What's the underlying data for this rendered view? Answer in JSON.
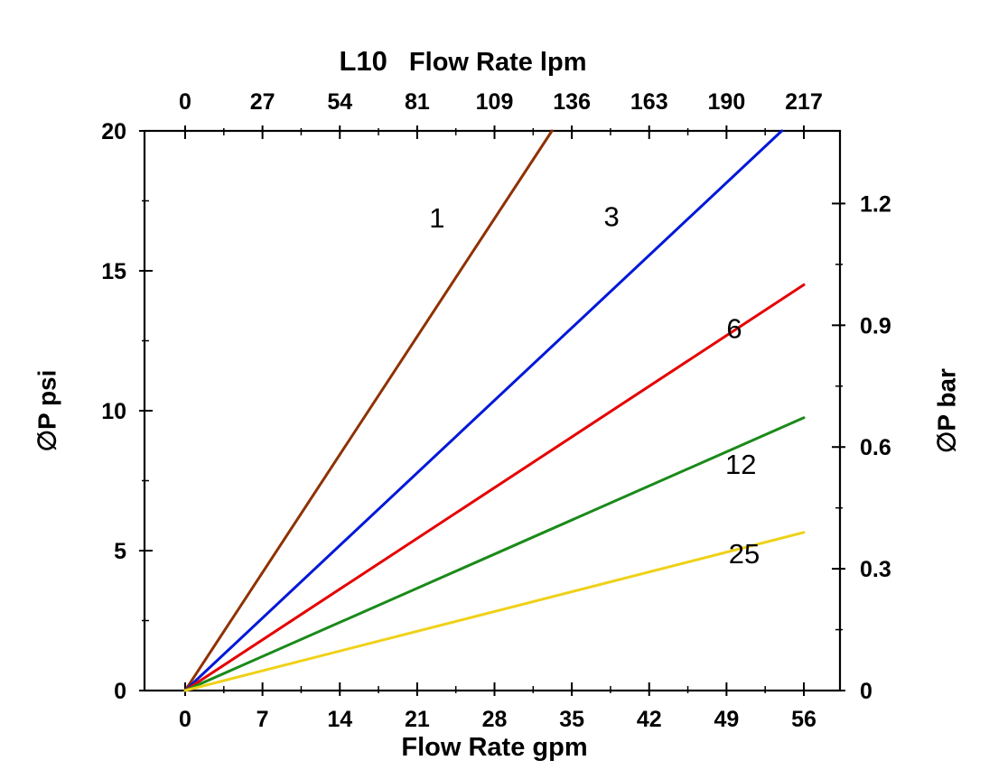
{
  "chart_data": {
    "type": "line",
    "title": "L10",
    "axis_color": "#000000",
    "background": "#ffffff",
    "top_axis": {
      "label": "Flow Rate lpm",
      "ticks": [
        "0",
        "27",
        "54",
        "81",
        "109",
        "136",
        "163",
        "190",
        "217"
      ]
    },
    "bottom_axis": {
      "label": "Flow Rate gpm",
      "ticks": [
        "0",
        "7",
        "14",
        "21",
        "28",
        "35",
        "42",
        "49",
        "56"
      ],
      "range": [
        0,
        56
      ]
    },
    "left_axis": {
      "label": "∅P psi",
      "ticks": [
        "0",
        "5",
        "10",
        "15",
        "20"
      ],
      "range": [
        0,
        20
      ]
    },
    "right_axis": {
      "label": "∅P bar",
      "ticks": [
        "0",
        "0.3",
        "0.6",
        "0.9",
        "1.2"
      ],
      "psi_per_bar": 14.5038
    },
    "series": [
      {
        "name": "1",
        "color": "#8e3200",
        "points": [
          [
            0,
            0
          ],
          [
            33.2,
            20
          ]
        ],
        "label_pos": [
          22.8,
          16.55
        ]
      },
      {
        "name": "3",
        "color": "#0018d8",
        "points": [
          [
            0,
            0
          ],
          [
            54,
            20
          ]
        ],
        "label_pos": [
          38.6,
          16.6
        ]
      },
      {
        "name": "6",
        "color": "#e60000",
        "points": [
          [
            0,
            0
          ],
          [
            56,
            14.5
          ]
        ],
        "label_pos": [
          49.7,
          12.6
        ]
      },
      {
        "name": "12",
        "color": "#1a8a1a",
        "points": [
          [
            0,
            0
          ],
          [
            56,
            9.75
          ]
        ],
        "label_pos": [
          50.3,
          7.75
        ]
      },
      {
        "name": "25",
        "color": "#efd117",
        "points": [
          [
            0,
            0
          ],
          [
            56,
            5.65
          ]
        ],
        "label_pos": [
          50.6,
          4.55
        ]
      }
    ]
  }
}
